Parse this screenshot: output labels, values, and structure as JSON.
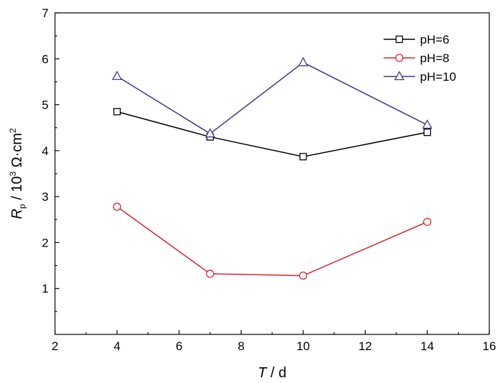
{
  "chart_data": {
    "type": "line",
    "title": "",
    "x": [
      4,
      7,
      10,
      14
    ],
    "xlim": [
      2,
      16
    ],
    "ylim": [
      0,
      7
    ],
    "xticks": [
      2,
      4,
      6,
      8,
      10,
      12,
      14,
      16
    ],
    "yticks": [
      1,
      2,
      3,
      4,
      5,
      6,
      7
    ],
    "grid": false,
    "legend_position": "top-right",
    "xlabel": {
      "var": "T",
      "rest": " / d"
    },
    "ylabel": {
      "var": "R",
      "sub": "p",
      "pre": " / 10",
      "exp": "3",
      "mid": " Ω·cm",
      "exp2": "2"
    },
    "series": [
      {
        "name": "pH=6",
        "values": [
          4.85,
          4.3,
          3.87,
          4.4
        ],
        "color": "#000000",
        "marker": "square"
      },
      {
        "name": "pH=8",
        "values": [
          2.78,
          1.32,
          1.28,
          2.45
        ],
        "color": "#d9262e",
        "marker": "circle"
      },
      {
        "name": "pH=10",
        "values": [
          5.62,
          4.37,
          5.92,
          4.56
        ],
        "color": "#3a3a8c",
        "marker": "triangle"
      }
    ]
  }
}
